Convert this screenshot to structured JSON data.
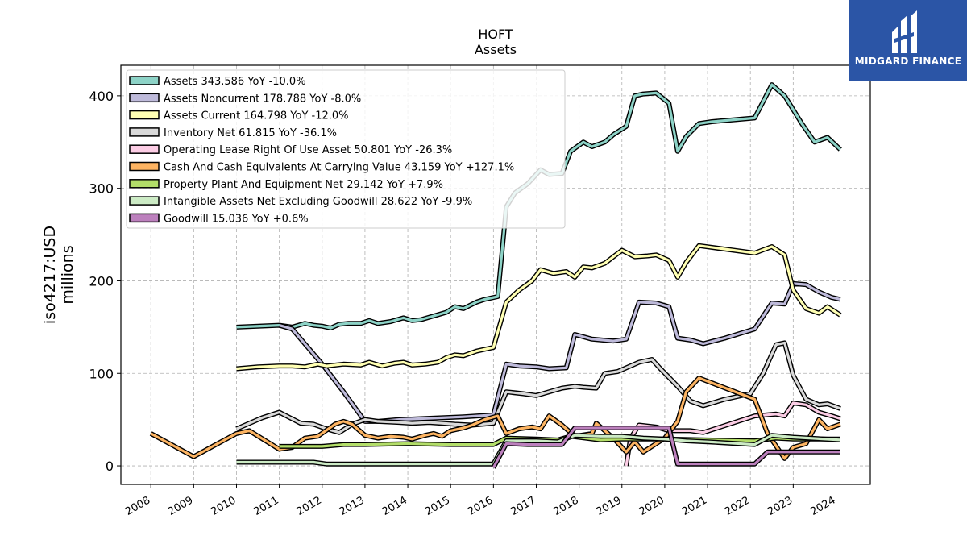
{
  "logo": {
    "text": "MIDGARD FINANCE",
    "bg_color": "#2B55A6"
  },
  "chart_data": {
    "type": "line",
    "title": "HOFT",
    "subtitle": "Assets",
    "ylabel_line1": "iso4217:USD",
    "ylabel_line2": "millions",
    "xlim": [
      2007.3,
      2024.8
    ],
    "ylim": [
      -20,
      433
    ],
    "yticks": [
      0,
      100,
      200,
      300,
      400
    ],
    "xticks": [
      "2008",
      "2009",
      "2010",
      "2011",
      "2012",
      "2013",
      "2014",
      "2015",
      "2016",
      "2017",
      "2018",
      "2019",
      "2020",
      "2021",
      "2022",
      "2023",
      "2024"
    ],
    "grid": true,
    "legend_position": "top-left",
    "series": [
      {
        "name": "Assets",
        "legend": "Assets  343.586 YoY -10.0%",
        "color": "#8DD3C7",
        "points": [
          [
            2010,
            150
          ],
          [
            2011,
            152
          ],
          [
            2011.3,
            150
          ],
          [
            2011.6,
            154
          ],
          [
            2011.8,
            152
          ],
          [
            2012,
            151
          ],
          [
            2012.2,
            149
          ],
          [
            2012.4,
            153
          ],
          [
            2012.6,
            154
          ],
          [
            2012.9,
            154
          ],
          [
            2013.1,
            157
          ],
          [
            2013.3,
            154
          ],
          [
            2013.6,
            156
          ],
          [
            2013.9,
            160
          ],
          [
            2014.1,
            157
          ],
          [
            2014.3,
            158
          ],
          [
            2014.6,
            162
          ],
          [
            2014.9,
            166
          ],
          [
            2015.1,
            172
          ],
          [
            2015.3,
            170
          ],
          [
            2015.6,
            177
          ],
          [
            2015.8,
            180
          ],
          [
            2016.1,
            183
          ],
          [
            2016.3,
            280
          ],
          [
            2016.5,
            295
          ],
          [
            2016.8,
            305
          ],
          [
            2017.1,
            320
          ],
          [
            2017.3,
            315
          ],
          [
            2017.6,
            316
          ],
          [
            2017.8,
            340
          ],
          [
            2018.1,
            350
          ],
          [
            2018.3,
            345
          ],
          [
            2018.6,
            350
          ],
          [
            2018.8,
            358
          ],
          [
            2019.1,
            367
          ],
          [
            2019.3,
            400
          ],
          [
            2019.5,
            402
          ],
          [
            2019.8,
            403
          ],
          [
            2020.1,
            392
          ],
          [
            2020.3,
            340
          ],
          [
            2020.5,
            356
          ],
          [
            2020.8,
            370
          ],
          [
            2021.1,
            372
          ],
          [
            2022.1,
            376
          ],
          [
            2022.5,
            412
          ],
          [
            2022.8,
            400
          ],
          [
            2023.2,
            370
          ],
          [
            2023.5,
            350
          ],
          [
            2023.8,
            355
          ],
          [
            2024.1,
            342
          ]
        ]
      },
      {
        "name": "Assets Noncurrent",
        "legend": "Assets Noncurrent  178.788 YoY -8.0%",
        "color": "#BEBADA",
        "points": [
          [
            2011,
            152
          ],
          [
            2011.3,
            148
          ],
          [
            2012,
            110
          ],
          [
            2012.5,
            80
          ],
          [
            2013,
            48
          ],
          [
            2013.3,
            48
          ],
          [
            2013.8,
            50
          ],
          [
            2014.3,
            51
          ],
          [
            2014.8,
            52
          ],
          [
            2015.3,
            53
          ],
          [
            2016,
            55
          ],
          [
            2016.3,
            110
          ],
          [
            2016.6,
            108
          ],
          [
            2017,
            107
          ],
          [
            2017.3,
            105
          ],
          [
            2017.7,
            106
          ],
          [
            2017.9,
            142
          ],
          [
            2018.3,
            137
          ],
          [
            2018.8,
            135
          ],
          [
            2019.1,
            137
          ],
          [
            2019.4,
            177
          ],
          [
            2019.8,
            176
          ],
          [
            2020.1,
            172
          ],
          [
            2020.3,
            138
          ],
          [
            2020.6,
            136
          ],
          [
            2020.9,
            132
          ],
          [
            2021.4,
            138
          ],
          [
            2022.1,
            148
          ],
          [
            2022.5,
            176
          ],
          [
            2022.8,
            175
          ],
          [
            2023,
            197
          ],
          [
            2023.3,
            196
          ],
          [
            2023.6,
            188
          ],
          [
            2023.9,
            182
          ],
          [
            2024.1,
            180
          ]
        ]
      },
      {
        "name": "Assets Current",
        "legend": "Assets Current  164.798 YoY -12.0%",
        "color": "#FFFFB3",
        "points": [
          [
            2010,
            105
          ],
          [
            2010.5,
            107
          ],
          [
            2011,
            108
          ],
          [
            2011.3,
            108
          ],
          [
            2011.6,
            107
          ],
          [
            2011.9,
            110
          ],
          [
            2012.1,
            108
          ],
          [
            2012.5,
            110
          ],
          [
            2012.9,
            109
          ],
          [
            2013.1,
            112
          ],
          [
            2013.4,
            108
          ],
          [
            2013.7,
            111
          ],
          [
            2013.9,
            112
          ],
          [
            2014.1,
            109
          ],
          [
            2014.4,
            110
          ],
          [
            2014.7,
            112
          ],
          [
            2014.9,
            117
          ],
          [
            2015.1,
            120
          ],
          [
            2015.3,
            119
          ],
          [
            2015.6,
            124
          ],
          [
            2016,
            128
          ],
          [
            2016.3,
            177
          ],
          [
            2016.6,
            190
          ],
          [
            2016.9,
            200
          ],
          [
            2017.1,
            212
          ],
          [
            2017.4,
            208
          ],
          [
            2017.7,
            210
          ],
          [
            2017.9,
            204
          ],
          [
            2018.1,
            215
          ],
          [
            2018.3,
            214
          ],
          [
            2018.6,
            219
          ],
          [
            2018.8,
            226
          ],
          [
            2019,
            233
          ],
          [
            2019.3,
            226
          ],
          [
            2019.6,
            227
          ],
          [
            2019.8,
            228
          ],
          [
            2020.1,
            222
          ],
          [
            2020.3,
            204
          ],
          [
            2020.5,
            220
          ],
          [
            2020.8,
            238
          ],
          [
            2022.1,
            230
          ],
          [
            2022.5,
            237
          ],
          [
            2022.8,
            228
          ],
          [
            2023,
            190
          ],
          [
            2023.3,
            170
          ],
          [
            2023.6,
            165
          ],
          [
            2023.8,
            172
          ],
          [
            2024.1,
            163
          ]
        ]
      },
      {
        "name": "Inventory Net",
        "legend": "Inventory Net  61.815 YoY -36.1%",
        "color": "#D9D9D9",
        "points": [
          [
            2010,
            40
          ],
          [
            2010.6,
            52
          ],
          [
            2011,
            58
          ],
          [
            2011.5,
            46
          ],
          [
            2011.8,
            45
          ],
          [
            2012.1,
            40
          ],
          [
            2012.4,
            36
          ],
          [
            2012.7,
            45
          ],
          [
            2013,
            50
          ],
          [
            2013.3,
            48
          ],
          [
            2013.8,
            47
          ],
          [
            2014.1,
            46
          ],
          [
            2014.5,
            47
          ],
          [
            2014.8,
            46
          ],
          [
            2015.1,
            45
          ],
          [
            2015.5,
            44
          ],
          [
            2016,
            46
          ],
          [
            2016.3,
            80
          ],
          [
            2016.7,
            78
          ],
          [
            2017,
            76
          ],
          [
            2017.3,
            80
          ],
          [
            2017.6,
            84
          ],
          [
            2017.9,
            86
          ],
          [
            2018.1,
            85
          ],
          [
            2018.4,
            84
          ],
          [
            2018.6,
            100
          ],
          [
            2018.9,
            102
          ],
          [
            2019.1,
            106
          ],
          [
            2019.4,
            112
          ],
          [
            2019.7,
            115
          ],
          [
            2019.9,
            105
          ],
          [
            2020.3,
            86
          ],
          [
            2020.6,
            70
          ],
          [
            2020.9,
            65
          ],
          [
            2021.4,
            72
          ],
          [
            2022,
            78
          ],
          [
            2022.3,
            100
          ],
          [
            2022.6,
            131
          ],
          [
            2022.8,
            133
          ],
          [
            2023,
            98
          ],
          [
            2023.3,
            72
          ],
          [
            2023.6,
            66
          ],
          [
            2023.8,
            67
          ],
          [
            2024.1,
            62
          ]
        ]
      },
      {
        "name": "Operating Lease Right Of Use Asset",
        "legend": "Operating Lease Right Of Use Asset  50.801 YoY -26.3%",
        "color": "#FCCDE5",
        "points": [
          [
            2019.1,
            0
          ],
          [
            2019.2,
            30
          ],
          [
            2019.4,
            44
          ],
          [
            2019.8,
            42
          ],
          [
            2020.1,
            38
          ],
          [
            2020.3,
            38
          ],
          [
            2020.6,
            38
          ],
          [
            2020.9,
            36
          ],
          [
            2021.3,
            42
          ],
          [
            2022.1,
            54
          ],
          [
            2022.6,
            56
          ],
          [
            2022.8,
            54
          ],
          [
            2023,
            68
          ],
          [
            2023.3,
            66
          ],
          [
            2023.6,
            58
          ],
          [
            2023.9,
            54
          ],
          [
            2024.1,
            51
          ]
        ]
      },
      {
        "name": "Cash And Cash Equivalents At Carrying Value",
        "legend": "Cash And Cash Equivalents At Carrying Value  43.159 YoY +127.1%",
        "color": "#FDB462",
        "points": [
          [
            2008,
            35
          ],
          [
            2009,
            10
          ],
          [
            2010,
            35
          ],
          [
            2010.3,
            38
          ],
          [
            2011,
            18
          ],
          [
            2011.3,
            20
          ],
          [
            2011.6,
            30
          ],
          [
            2011.9,
            32
          ],
          [
            2012.3,
            45
          ],
          [
            2012.5,
            48
          ],
          [
            2012.7,
            45
          ],
          [
            2013,
            33
          ],
          [
            2013.3,
            30
          ],
          [
            2013.6,
            32
          ],
          [
            2013.9,
            31
          ],
          [
            2014.1,
            29
          ],
          [
            2014.4,
            33
          ],
          [
            2014.6,
            35
          ],
          [
            2014.8,
            32
          ],
          [
            2015,
            38
          ],
          [
            2015.3,
            41
          ],
          [
            2015.5,
            44
          ],
          [
            2015.8,
            50
          ],
          [
            2016.1,
            54
          ],
          [
            2016.3,
            35
          ],
          [
            2016.6,
            40
          ],
          [
            2016.9,
            42
          ],
          [
            2017.1,
            40
          ],
          [
            2017.3,
            54
          ],
          [
            2017.6,
            44
          ],
          [
            2017.9,
            32
          ],
          [
            2018.3,
            35
          ],
          [
            2018.4,
            46
          ],
          [
            2018.6,
            38
          ],
          [
            2018.8,
            30
          ],
          [
            2019.1,
            15
          ],
          [
            2019.3,
            26
          ],
          [
            2019.5,
            15
          ],
          [
            2019.8,
            24
          ],
          [
            2020,
            30
          ],
          [
            2020.3,
            48
          ],
          [
            2020.5,
            80
          ],
          [
            2020.8,
            95
          ],
          [
            2022.1,
            72
          ],
          [
            2022.4,
            35
          ],
          [
            2022.8,
            8
          ],
          [
            2023,
            20
          ],
          [
            2023.3,
            24
          ],
          [
            2023.6,
            50
          ],
          [
            2023.8,
            40
          ],
          [
            2024.1,
            45
          ]
        ]
      },
      {
        "name": "Property Plant And Equipment Net",
        "legend": "Property Plant And Equipment Net  29.142 YoY +7.9%",
        "color": "#B3DE69",
        "points": [
          [
            2011,
            21
          ],
          [
            2012,
            21
          ],
          [
            2012.5,
            23
          ],
          [
            2013,
            23
          ],
          [
            2014,
            24
          ],
          [
            2015,
            23
          ],
          [
            2016,
            23
          ],
          [
            2016.3,
            30
          ],
          [
            2017,
            29
          ],
          [
            2017.5,
            28
          ],
          [
            2017.8,
            32
          ],
          [
            2018.5,
            28
          ],
          [
            2019,
            29
          ],
          [
            2019.5,
            29
          ],
          [
            2020,
            29
          ],
          [
            2022.1,
            27
          ],
          [
            2022.6,
            30
          ],
          [
            2023,
            29
          ],
          [
            2024.1,
            29
          ]
        ]
      },
      {
        "name": "Intangible Assets Net Excluding Goodwill",
        "legend": "Intangible Assets Net Excluding Goodwill  28.622 YoY -9.9%",
        "color": "#CCEBC5",
        "points": [
          [
            2010,
            4
          ],
          [
            2011.8,
            4
          ],
          [
            2012.1,
            2
          ],
          [
            2016,
            2
          ],
          [
            2016.3,
            27
          ],
          [
            2017,
            27
          ],
          [
            2017.5,
            26
          ],
          [
            2017.9,
            33
          ],
          [
            2018.5,
            32
          ],
          [
            2019,
            32
          ],
          [
            2019.5,
            30
          ],
          [
            2020,
            29
          ],
          [
            2020.5,
            27
          ],
          [
            2021,
            26
          ],
          [
            2022.1,
            23
          ],
          [
            2022.5,
            33
          ],
          [
            2023,
            31
          ],
          [
            2024.1,
            28
          ]
        ]
      },
      {
        "name": "Goodwill",
        "legend": "Goodwill  15.036 YoY +0.6%",
        "color": "#BC80BD",
        "points": [
          [
            2016,
            -2
          ],
          [
            2016.3,
            24
          ],
          [
            2016.8,
            23
          ],
          [
            2017.6,
            23
          ],
          [
            2017.9,
            41
          ],
          [
            2020.1,
            41
          ],
          [
            2020.3,
            2
          ],
          [
            2020.5,
            2
          ],
          [
            2022.1,
            2
          ],
          [
            2022.4,
            15
          ],
          [
            2024.1,
            15
          ]
        ]
      }
    ]
  }
}
